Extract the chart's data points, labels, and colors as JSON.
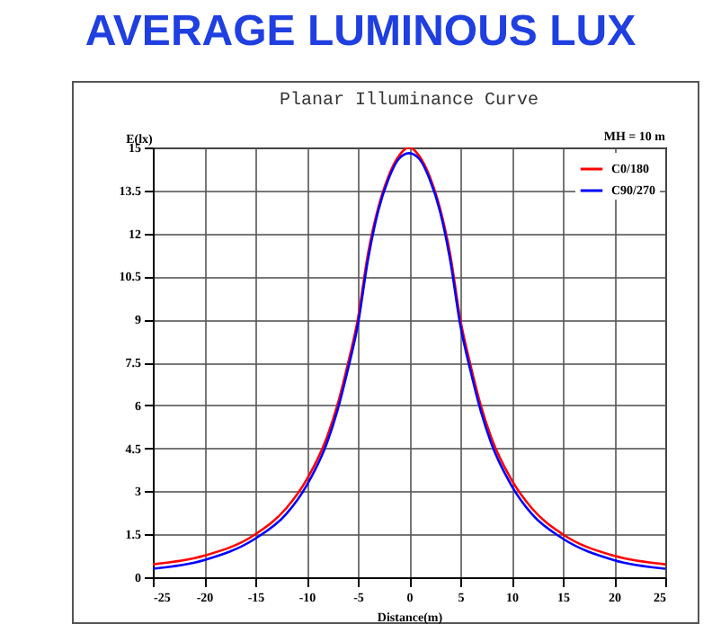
{
  "chart_data": {
    "type": "line",
    "title": "AVERAGE LUMINOUS LUX",
    "subtitle": "Planar Illuminance Curve",
    "xlabel": "Distance(m)",
    "ylabel": "E(lx)",
    "annotations": [
      "MH = 10 m"
    ],
    "x": [
      -25,
      -20,
      -15,
      -12,
      -10,
      -8,
      -7,
      -6,
      -5,
      -4,
      -3,
      -2,
      -1,
      0,
      1,
      2,
      3,
      4,
      5,
      6,
      7,
      8,
      10,
      12,
      15,
      20,
      25
    ],
    "series": [
      {
        "name": "C0/180",
        "color": "#ff0000",
        "values": [
          0.45,
          0.75,
          1.5,
          2.4,
          3.4,
          4.9,
          6.0,
          7.4,
          9.0,
          11.3,
          12.9,
          14.0,
          14.7,
          15,
          14.7,
          14.0,
          12.9,
          11.3,
          9.0,
          7.4,
          6.0,
          4.9,
          3.4,
          2.4,
          1.5,
          0.75,
          0.45
        ]
      },
      {
        "name": "C90/270",
        "color": "#0000ff",
        "values": [
          0.3,
          0.6,
          1.35,
          2.2,
          3.2,
          4.7,
          5.8,
          7.2,
          8.8,
          11.1,
          12.8,
          13.9,
          14.6,
          14.8,
          14.6,
          13.9,
          12.8,
          11.1,
          8.8,
          7.2,
          5.8,
          4.7,
          3.2,
          2.2,
          1.35,
          0.6,
          0.3
        ]
      }
    ],
    "xlim": [
      -25,
      25
    ],
    "xticks": [
      -25,
      -20,
      -15,
      -10,
      -5,
      0,
      5,
      10,
      15,
      20,
      25
    ],
    "ylim": [
      0,
      15
    ],
    "yticks": [
      0,
      1.5,
      3,
      4.5,
      6,
      7.5,
      9,
      10.5,
      12,
      13.5,
      15
    ],
    "grid": true,
    "legend": "top right",
    "marker": "none",
    "line_style": "solid"
  }
}
